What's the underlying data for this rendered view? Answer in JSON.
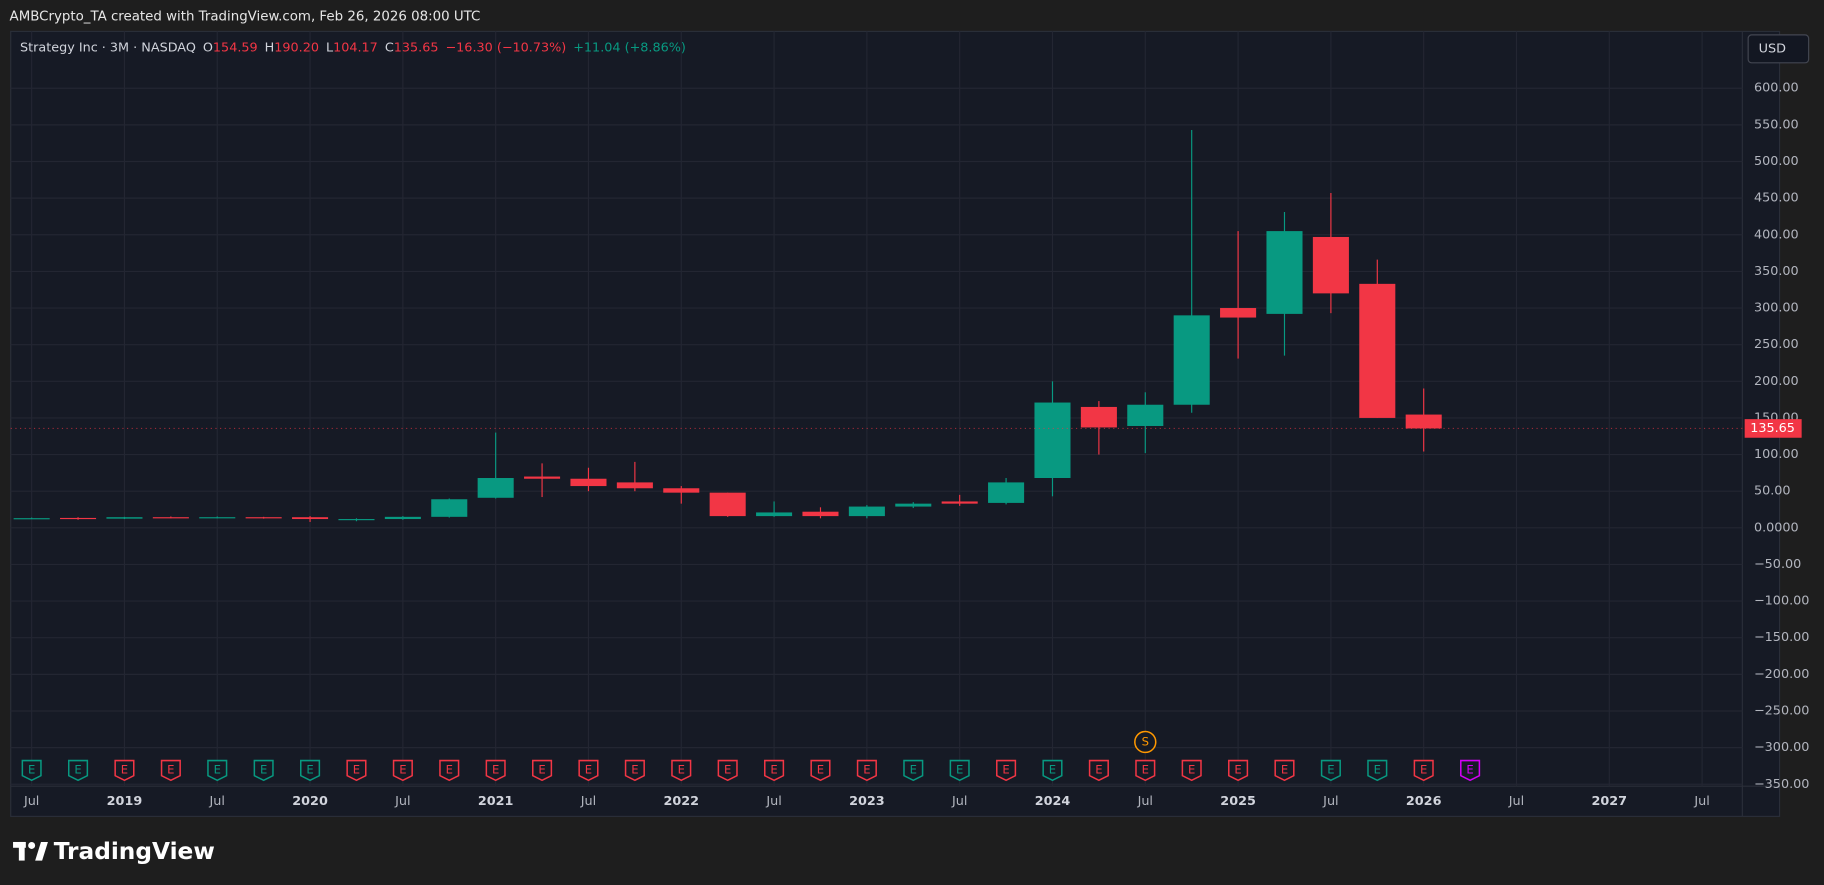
{
  "header": {
    "text": "AMBCrypto_TA created with TradingView.com, Feb 26, 2026 08:00 UTC"
  },
  "legend": {
    "symbol": "Strategy Inc · 3M · NASDAQ",
    "o_label": "O",
    "o": "154.59",
    "h_label": "H",
    "h": "190.20",
    "l_label": "L",
    "l": "104.17",
    "c_label": "C",
    "c": "135.65",
    "change": "−16.30 (−10.73%)",
    "extra": "+11.04 (+8.86%)"
  },
  "currency": "USD",
  "watermark": "TradingView",
  "chart_data": {
    "type": "candlestick",
    "categories": [
      "Jul",
      null,
      "2019",
      null,
      "Jul",
      null,
      "2020",
      null,
      "Jul",
      null,
      "2021",
      null,
      "Jul",
      null,
      "2022",
      null,
      "Jul",
      null,
      "2023",
      null,
      "Jul",
      null,
      "2024",
      null,
      "Jul",
      null,
      "2025",
      null,
      "Jul",
      null,
      "2026",
      null,
      "Jul",
      null,
      "2027",
      null,
      "Jul"
    ],
    "open": [
      12.8,
      13.5,
      12.5,
      14.5,
      14,
      14.5,
      14.5,
      11,
      12,
      15,
      41,
      70,
      67,
      62,
      54,
      48,
      16,
      22,
      16,
      29,
      36,
      34,
      68,
      165,
      139,
      168,
      300,
      292,
      397,
      333,
      154.59,
      null,
      null,
      null,
      null,
      null,
      null
    ],
    "high": [
      14,
      14.5,
      15,
      15.5,
      15.5,
      15,
      16,
      13,
      16,
      40,
      130,
      88,
      82,
      90,
      57,
      48,
      36,
      28,
      31,
      35,
      45,
      68,
      200,
      173,
      185,
      543,
      405,
      431,
      457,
      366,
      190.2,
      null,
      null,
      null,
      null,
      null,
      null
    ],
    "low": [
      12,
      11,
      12,
      13,
      13,
      12.5,
      8,
      9,
      11,
      14,
      40,
      42,
      50,
      50,
      33,
      15,
      15,
      13,
      13,
      27,
      30,
      32,
      43,
      100,
      102,
      157,
      231,
      235,
      293,
      150,
      104.17,
      null,
      null,
      null,
      null,
      null,
      null
    ],
    "close": [
      13.2,
      13,
      14.5,
      14,
      14.5,
      14,
      12,
      12,
      15,
      39,
      68,
      67,
      57,
      54,
      48,
      16,
      21,
      16,
      29,
      33,
      33,
      62,
      171,
      137,
      168,
      290,
      287,
      405,
      320,
      150,
      135.65,
      null,
      null,
      null,
      null,
      null,
      null
    ],
    "up_color": "#089981",
    "down_color": "#f23645",
    "ylim": [
      -351,
      649
    ],
    "yticks": [
      {
        "value": 600,
        "label": "600.00"
      },
      {
        "value": 550,
        "label": "550.00"
      },
      {
        "value": 500,
        "label": "500.00"
      },
      {
        "value": 450,
        "label": "450.00"
      },
      {
        "value": 400,
        "label": "400.00"
      },
      {
        "value": 350,
        "label": "350.00"
      },
      {
        "value": 300,
        "label": "300.00"
      },
      {
        "value": 250,
        "label": "250.00"
      },
      {
        "value": 200,
        "label": "200.00"
      },
      {
        "value": 150,
        "label": "150.00"
      },
      {
        "value": 100,
        "label": "100.00"
      },
      {
        "value": 50,
        "label": "50.00"
      },
      {
        "value": 0,
        "label": "0.0000"
      },
      {
        "value": -50,
        "label": "−50.00"
      },
      {
        "value": -100,
        "label": "−100.00"
      },
      {
        "value": -150,
        "label": "−150.00"
      },
      {
        "value": -200,
        "label": "−200.00"
      },
      {
        "value": -250,
        "label": "−250.00"
      },
      {
        "value": -300,
        "label": "−300.00"
      },
      {
        "value": -350,
        "label": "−350.00"
      }
    ],
    "grid": true,
    "last_price": {
      "value": 135.65,
      "label": "135.65"
    },
    "earnings": {
      "label": "E",
      "colors": [
        "#089981",
        "#089981",
        "#f23645",
        "#f23645",
        "#089981",
        "#089981",
        "#089981",
        "#f23645",
        "#f23645",
        "#f23645",
        "#f23645",
        "#f23645",
        "#f23645",
        "#f23645",
        "#f23645",
        "#f23645",
        "#f23645",
        "#f23645",
        "#f23645",
        "#089981",
        "#089981",
        "#f23645",
        "#089981",
        "#f23645",
        "#f23645",
        "#f23645",
        "#f23645",
        "#f23645",
        "#089981",
        "#089981",
        "#f23645",
        "#d500f9"
      ]
    },
    "split": {
      "label": "S",
      "index": 24,
      "color": "#ff9800"
    }
  }
}
